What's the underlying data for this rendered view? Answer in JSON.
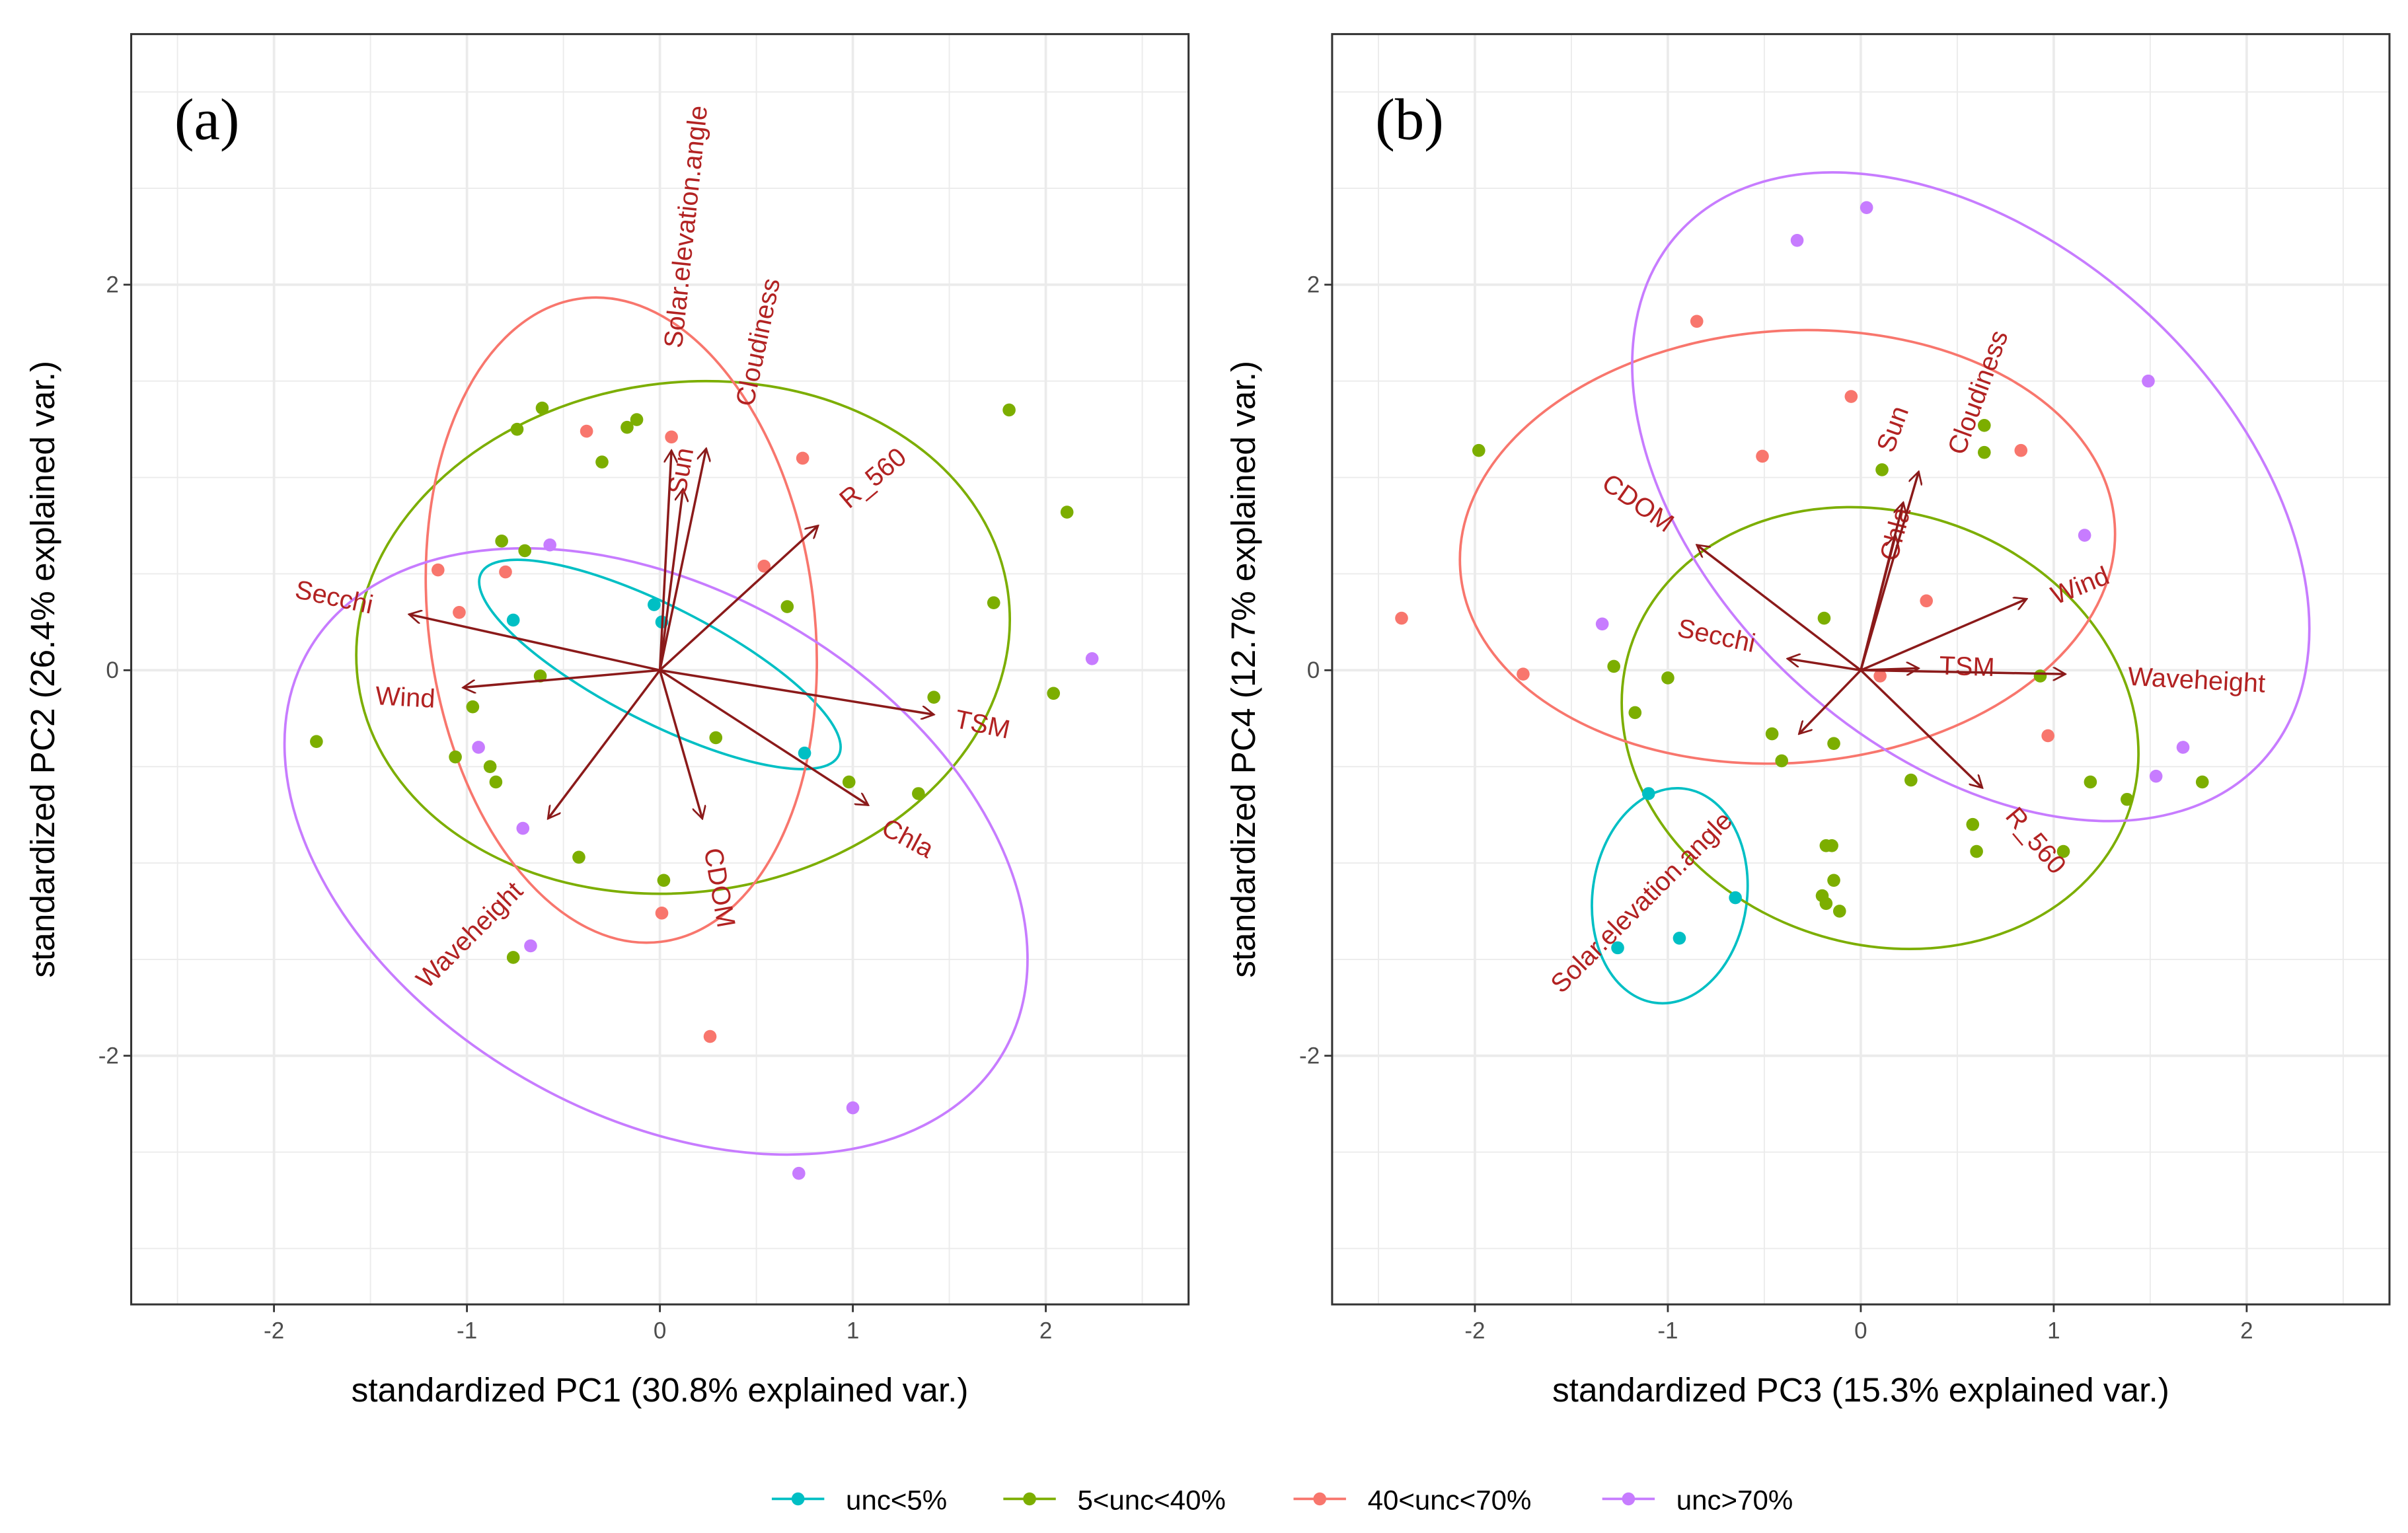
{
  "chart_data": [
    {
      "type": "scatter",
      "panel_label": "(a)",
      "xlabel": "standardized PC1 (30.8% explained var.)",
      "ylabel": "standardized PC2 (26.4% explained var.)",
      "xlim": [
        -2.74,
        2.74
      ],
      "ylim": [
        -3.29,
        3.3
      ],
      "xticks": [
        "-2",
        "-1",
        "0",
        "1",
        "2"
      ],
      "yticks": [
        "-2",
        "0",
        "2"
      ],
      "grid": true,
      "groups": [
        {
          "name": "unc<5%",
          "color": "#00BFC4",
          "points": [
            [
              -0.76,
              0.26
            ],
            [
              -0.03,
              0.34
            ],
            [
              0.01,
              0.25
            ],
            [
              0.75,
              -0.43
            ]
          ],
          "ellipse": {
            "c": [
              0,
              0.03
            ],
            "a": 1.04,
            "b": 0.3,
            "angle": 27
          }
        },
        {
          "name": "5<unc<40%",
          "color": "#7CAE00",
          "points": [
            [
              -1.78,
              -0.37
            ],
            [
              -0.74,
              1.25
            ],
            [
              -0.61,
              1.36
            ],
            [
              -0.3,
              1.08
            ],
            [
              -0.17,
              1.26
            ],
            [
              -0.12,
              1.3
            ],
            [
              -0.82,
              0.67
            ],
            [
              -0.7,
              0.62
            ],
            [
              -0.62,
              -0.03
            ],
            [
              -0.97,
              -0.19
            ],
            [
              -1.06,
              -0.45
            ],
            [
              -0.88,
              -0.5
            ],
            [
              -0.85,
              -0.58
            ],
            [
              -0.42,
              -0.97
            ],
            [
              -0.76,
              -1.49
            ],
            [
              0.02,
              -1.09
            ],
            [
              0.29,
              -0.35
            ],
            [
              0.66,
              0.33
            ],
            [
              0.98,
              -0.58
            ],
            [
              1.34,
              -0.64
            ],
            [
              1.42,
              -0.14
            ],
            [
              1.73,
              0.35
            ],
            [
              2.04,
              -0.12
            ],
            [
              1.81,
              1.35
            ],
            [
              2.11,
              0.82
            ]
          ],
          "ellipse": {
            "c": [
              0.12,
              0.17
            ],
            "a": 1.7,
            "b": 1.32,
            "angle": -8
          }
        },
        {
          "name": "40<unc<70%",
          "color": "#F8766D",
          "points": [
            [
              -0.38,
              1.24
            ],
            [
              0.06,
              1.21
            ],
            [
              0.74,
              1.1
            ],
            [
              -1.15,
              0.52
            ],
            [
              -0.8,
              0.51
            ],
            [
              -1.04,
              0.3
            ],
            [
              0.54,
              0.54
            ],
            [
              0.01,
              -1.26
            ],
            [
              0.26,
              -1.9
            ]
          ],
          "ellipse": {
            "c": [
              -0.2,
              0.26
            ],
            "a": 1.0,
            "b": 1.68,
            "angle": -7
          }
        },
        {
          "name": "unc>70%",
          "color": "#C77CFF",
          "points": [
            [
              -0.57,
              0.65
            ],
            [
              -0.94,
              -0.4
            ],
            [
              -0.71,
              -0.82
            ],
            [
              -0.67,
              -1.43
            ],
            [
              1.0,
              -2.27
            ],
            [
              0.72,
              -2.61
            ],
            [
              2.24,
              0.06
            ]
          ],
          "ellipse": {
            "c": [
              -0.02,
              -0.94
            ],
            "a": 2.08,
            "b": 1.36,
            "angle": 30
          }
        }
      ],
      "arrows": [
        {
          "name": "Secchi",
          "end": [
            -1.3,
            0.29
          ],
          "label": [
            -1.69,
            0.37
          ],
          "rot": 12
        },
        {
          "name": "Wind",
          "end": [
            -1.02,
            -0.09
          ],
          "label": [
            -1.32,
            -0.15
          ],
          "rot": 3
        },
        {
          "name": "TSM",
          "end": [
            1.42,
            -0.23
          ],
          "label": [
            1.67,
            -0.29
          ],
          "rot": 12
        },
        {
          "name": "Chla",
          "end": [
            1.08,
            -0.7
          ],
          "label": [
            1.28,
            -0.88
          ],
          "rot": 28
        },
        {
          "name": "CDOM",
          "end": [
            0.22,
            -0.77
          ],
          "label": [
            0.3,
            -1.13
          ],
          "rot": 80
        },
        {
          "name": "Waveheight",
          "end": [
            -0.58,
            -0.77
          ],
          "label": [
            -0.98,
            -1.38
          ],
          "rot": -45
        },
        {
          "name": "R_560",
          "end": [
            0.82,
            0.75
          ],
          "label": [
            1.11,
            0.99
          ],
          "rot": -40
        },
        {
          "name": "Cloudiness",
          "end": [
            0.24,
            1.15
          ],
          "label": [
            0.39,
            1.7
          ],
          "rot": -78
        },
        {
          "name": "Sun",
          "end": [
            0.12,
            0.94
          ],
          "label": [
            0.15,
            1.08
          ],
          "rot": -80
        },
        {
          "name": "Solar.elevation.angle",
          "end": [
            0.06,
            1.14
          ],
          "label": [
            0.24,
            2.3
          ],
          "rot": -84
        }
      ]
    },
    {
      "type": "scatter",
      "panel_label": "(b)",
      "xlabel": "standardized PC3 (15.3% explained var.)",
      "ylabel": "standardized PC4 (12.7% explained var.)",
      "xlim": [
        -2.74,
        2.74
      ],
      "ylim": [
        -3.29,
        3.3
      ],
      "xticks": [
        "-2",
        "-1",
        "0",
        "1",
        "2"
      ],
      "yticks": [
        "-2",
        "0",
        "2"
      ],
      "grid": true,
      "groups": [
        {
          "name": "unc<5%",
          "color": "#00BFC4",
          "points": [
            [
              -1.1,
              -0.64
            ],
            [
              -0.65,
              -1.18
            ],
            [
              -0.94,
              -1.39
            ],
            [
              -1.26,
              -1.44
            ]
          ],
          "ellipse": {
            "c": [
              -0.99,
              -1.17
            ],
            "a": 0.4,
            "b": 0.56,
            "angle": 8
          }
        },
        {
          "name": "5<unc<40%",
          "color": "#7CAE00",
          "points": [
            [
              -1.98,
              1.14
            ],
            [
              0.11,
              1.04
            ],
            [
              0.64,
              1.27
            ],
            [
              0.64,
              1.13
            ],
            [
              -0.19,
              0.27
            ],
            [
              -1.28,
              0.02
            ],
            [
              -1.0,
              -0.04
            ],
            [
              -1.17,
              -0.22
            ],
            [
              -0.46,
              -0.33
            ],
            [
              -0.41,
              -0.47
            ],
            [
              -0.14,
              -0.38
            ],
            [
              0.26,
              -0.57
            ],
            [
              0.93,
              -0.03
            ],
            [
              1.19,
              -0.58
            ],
            [
              1.38,
              -0.67
            ],
            [
              1.77,
              -0.58
            ],
            [
              0.58,
              -0.8
            ],
            [
              0.6,
              -0.94
            ],
            [
              1.05,
              -0.94
            ],
            [
              -0.18,
              -0.91
            ],
            [
              -0.15,
              -0.91
            ],
            [
              -0.14,
              -1.09
            ],
            [
              -0.2,
              -1.17
            ],
            [
              -0.18,
              -1.21
            ],
            [
              -0.11,
              -1.25
            ]
          ],
          "ellipse": {
            "c": [
              0.1,
              -0.3
            ],
            "a": 1.36,
            "b": 1.12,
            "angle": 18
          }
        },
        {
          "name": "40<unc<70%",
          "color": "#F8766D",
          "points": [
            [
              -0.85,
              1.81
            ],
            [
              -0.05,
              1.42
            ],
            [
              -0.51,
              1.11
            ],
            [
              0.83,
              1.14
            ],
            [
              -2.38,
              0.27
            ],
            [
              -1.75,
              -0.02
            ],
            [
              0.34,
              0.36
            ],
            [
              0.1,
              -0.03
            ],
            [
              0.97,
              -0.34
            ]
          ],
          "ellipse": {
            "c": [
              -0.38,
              0.64
            ],
            "a": 1.7,
            "b": 1.12,
            "angle": -4
          }
        },
        {
          "name": "unc>70%",
          "color": "#C77CFF",
          "points": [
            [
              -0.33,
              2.23
            ],
            [
              0.03,
              2.4
            ],
            [
              1.49,
              1.5
            ],
            [
              1.16,
              0.7
            ],
            [
              -1.34,
              0.24
            ],
            [
              1.53,
              -0.55
            ],
            [
              1.67,
              -0.4
            ]
          ],
          "ellipse": {
            "c": [
              0.57,
              0.9
            ],
            "a": 2.04,
            "b": 1.32,
            "angle": 42
          }
        }
      ],
      "arrows": [
        {
          "name": "CDOM",
          "end": [
            -0.85,
            0.65
          ],
          "label": [
            -1.16,
            0.86
          ],
          "rot": 35
        },
        {
          "name": "Secchi",
          "end": [
            -0.38,
            0.06
          ],
          "label": [
            -0.75,
            0.17
          ],
          "rot": 12
        },
        {
          "name": "Solar.elevation.angle",
          "end": [
            -0.32,
            -0.33
          ],
          "label": [
            -1.13,
            -1.21
          ],
          "rot": -45
        },
        {
          "name": "Chla",
          "end": [
            0.18,
            0.7
          ],
          "label": [
            0.3,
            0.8
          ],
          "rot": -75
        },
        {
          "name": "Cloudiness",
          "end": [
            0.3,
            1.03
          ],
          "label": [
            0.44,
            1.39
          ],
          "rot": -70
        },
        {
          "name": "Sun",
          "end": [
            0.22,
            0.87
          ],
          "label": [
            0.35,
            1.2
          ],
          "rot": -70
        },
        {
          "name": "Wind",
          "end": [
            0.86,
            0.37
          ],
          "label": [
            1.14,
            0.43
          ],
          "rot": -22
        },
        {
          "name": "TSM",
          "end": [
            0.3,
            0.01
          ],
          "label": [
            0.55,
            0.01
          ],
          "rot": 2
        },
        {
          "name": "Waveheight",
          "end": [
            1.06,
            -0.02
          ],
          "label": [
            1.74,
            -0.06
          ],
          "rot": 3
        },
        {
          "name": "R_560",
          "end": [
            0.63,
            -0.61
          ],
          "label": [
            0.9,
            -0.89
          ],
          "rot": 50
        }
      ]
    }
  ],
  "legend": {
    "position": "bottom",
    "items": [
      "unc<5%",
      "5<unc<40%",
      "40<unc<70%",
      "unc>70%"
    ]
  }
}
